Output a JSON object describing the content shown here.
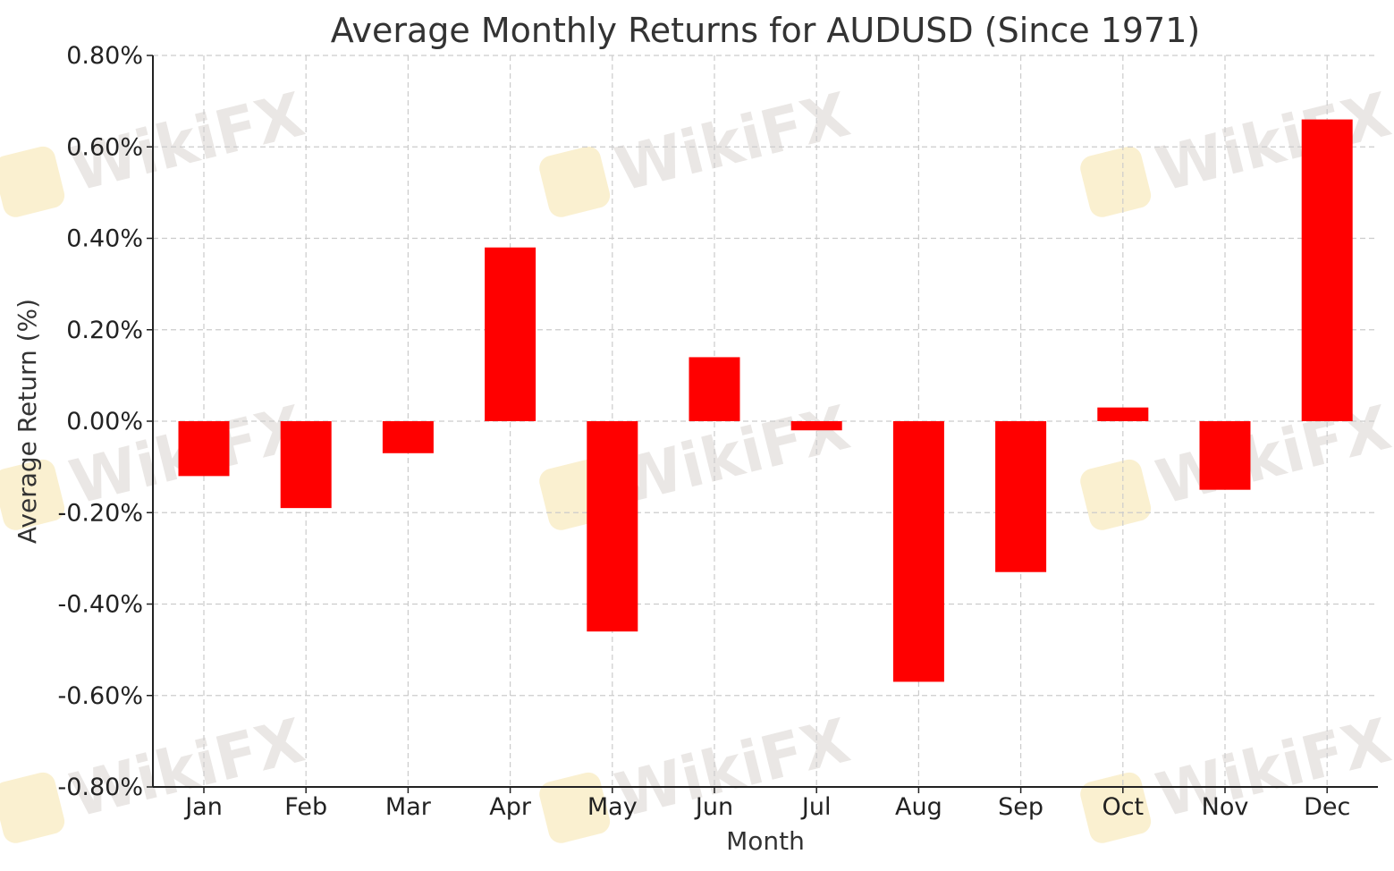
{
  "watermark": {
    "text": "WikiFX"
  },
  "chart_data": {
    "type": "bar",
    "title": "Average Monthly Returns for AUDUSD (Since 1971)",
    "xlabel": "Month",
    "ylabel": "Average Return (%)",
    "categories": [
      "Jan",
      "Feb",
      "Mar",
      "Apr",
      "May",
      "Jun",
      "Jul",
      "Aug",
      "Sep",
      "Oct",
      "Nov",
      "Dec"
    ],
    "values": [
      -0.12,
      -0.19,
      -0.07,
      0.38,
      -0.46,
      0.14,
      -0.02,
      -0.57,
      -0.33,
      0.03,
      -0.15,
      0.66
    ],
    "ylim": [
      -0.8,
      0.8
    ],
    "yticks": [
      0.8,
      0.6,
      0.4,
      0.2,
      0.0,
      -0.2,
      -0.4,
      -0.6,
      -0.8
    ],
    "ytick_labels": [
      "0.80%",
      "0.60%",
      "0.40%",
      "0.20%",
      "0.00%",
      "-0.20%",
      "-0.40%",
      "-0.60%",
      "-0.80%"
    ],
    "grid": true,
    "bar_color": "#ff0000",
    "grid_color": "#cccccc"
  }
}
